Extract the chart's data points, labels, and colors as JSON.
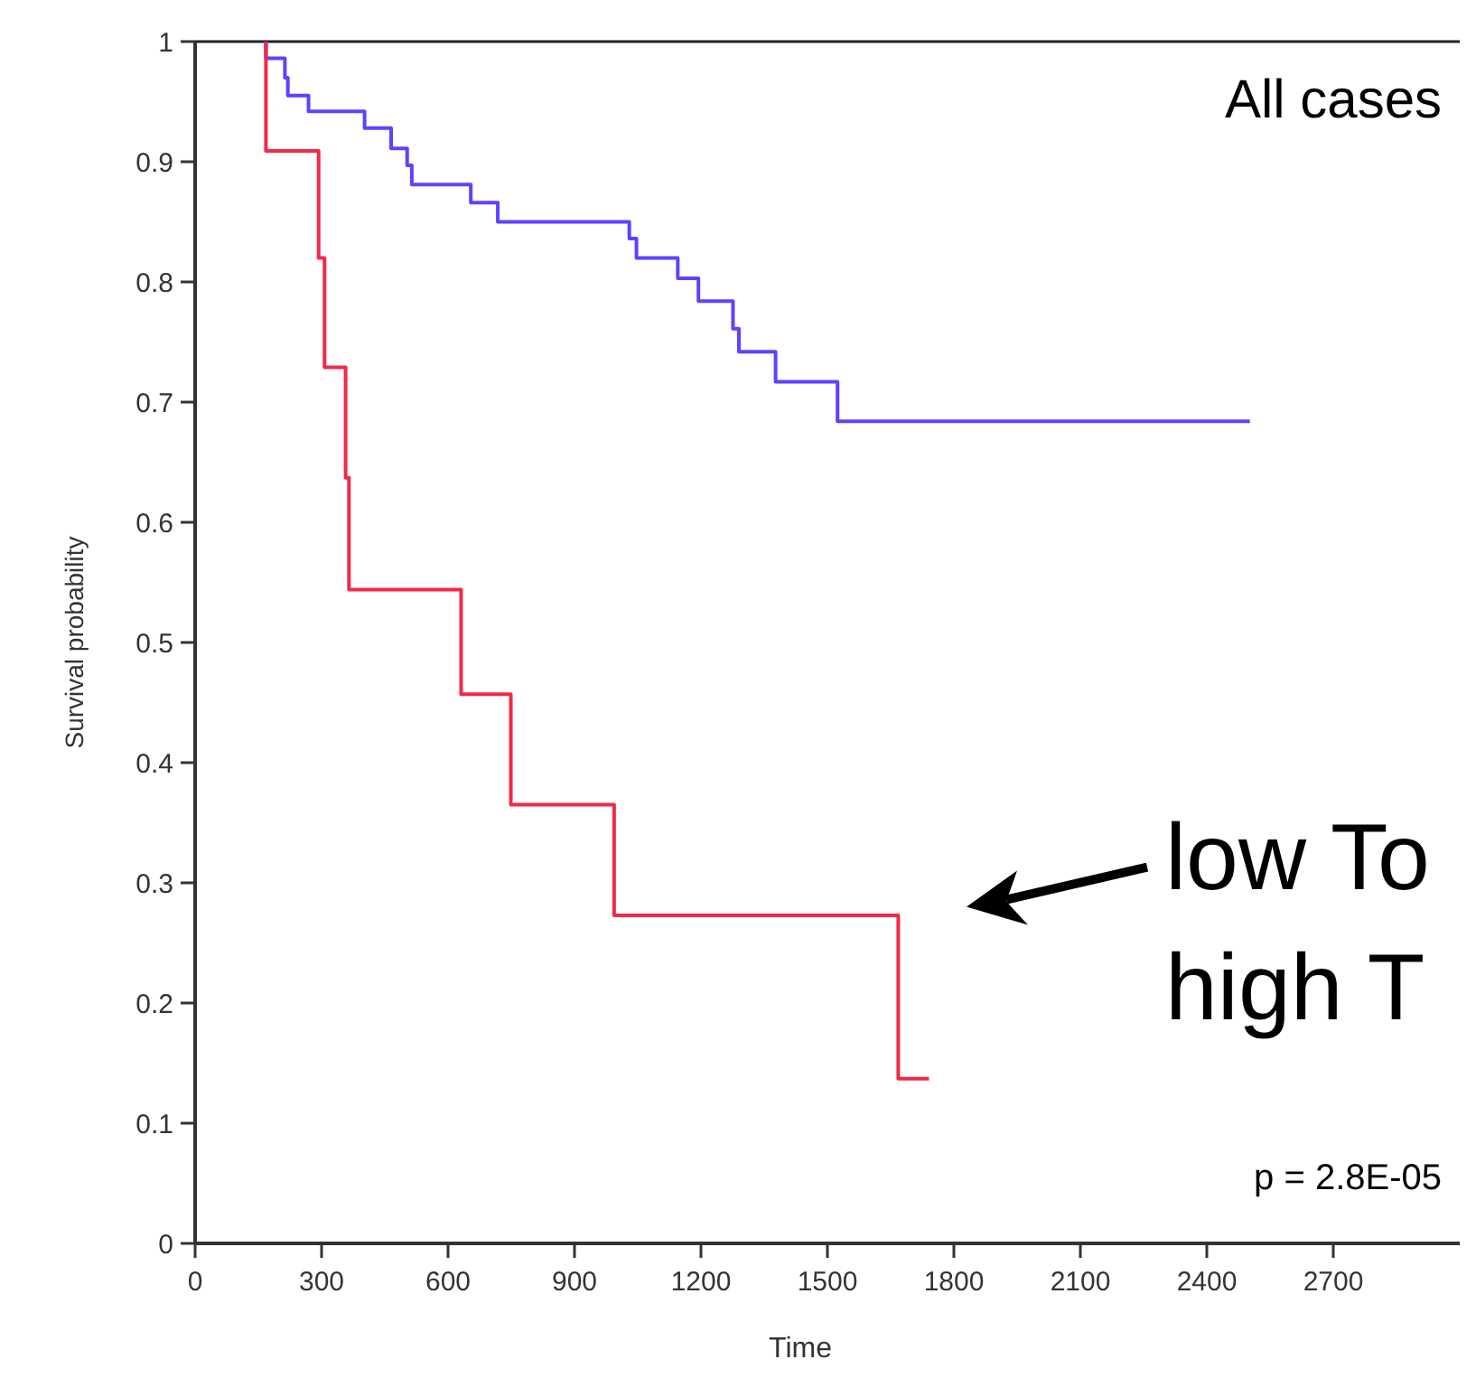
{
  "chart_data": {
    "type": "step",
    "xlabel": "Time",
    "ylabel": "Survival probability",
    "xlim": [
      0,
      3000
    ],
    "ylim": [
      0,
      1
    ],
    "xticks": [
      0,
      300,
      600,
      900,
      1200,
      1500,
      1800,
      2100,
      2400,
      2700
    ],
    "yticks": [
      0,
      0.1,
      0.2,
      0.3,
      0.4,
      0.5,
      0.6,
      0.7,
      0.8,
      0.9,
      1
    ],
    "series": [
      {
        "color": "#5b44ff",
        "x": [
          168,
          168,
          213,
          220,
          269,
          402,
          465,
          503,
          514,
          654,
          718,
          1030,
          1047,
          1145,
          1194,
          1276,
          1290,
          1377,
          1524,
          2502
        ],
        "values": [
          1,
          0.986,
          0.97,
          0.955,
          0.942,
          0.928,
          0.911,
          0.897,
          0.881,
          0.866,
          0.85,
          0.836,
          0.82,
          0.803,
          0.784,
          0.761,
          0.742,
          0.717,
          0.684,
          0.684
        ]
      },
      {
        "color": "#f02a48",
        "x": [
          168,
          168,
          293,
          307,
          357,
          365,
          631,
          749,
          994,
          1668,
          1741
        ],
        "values": [
          1,
          0.909,
          0.82,
          0.729,
          0.637,
          0.544,
          0.457,
          0.365,
          0.273,
          0.137,
          0.137
        ]
      }
    ],
    "annotations": [
      "low To",
      "high T",
      "All cases",
      "p = 2.8E-05"
    ]
  }
}
